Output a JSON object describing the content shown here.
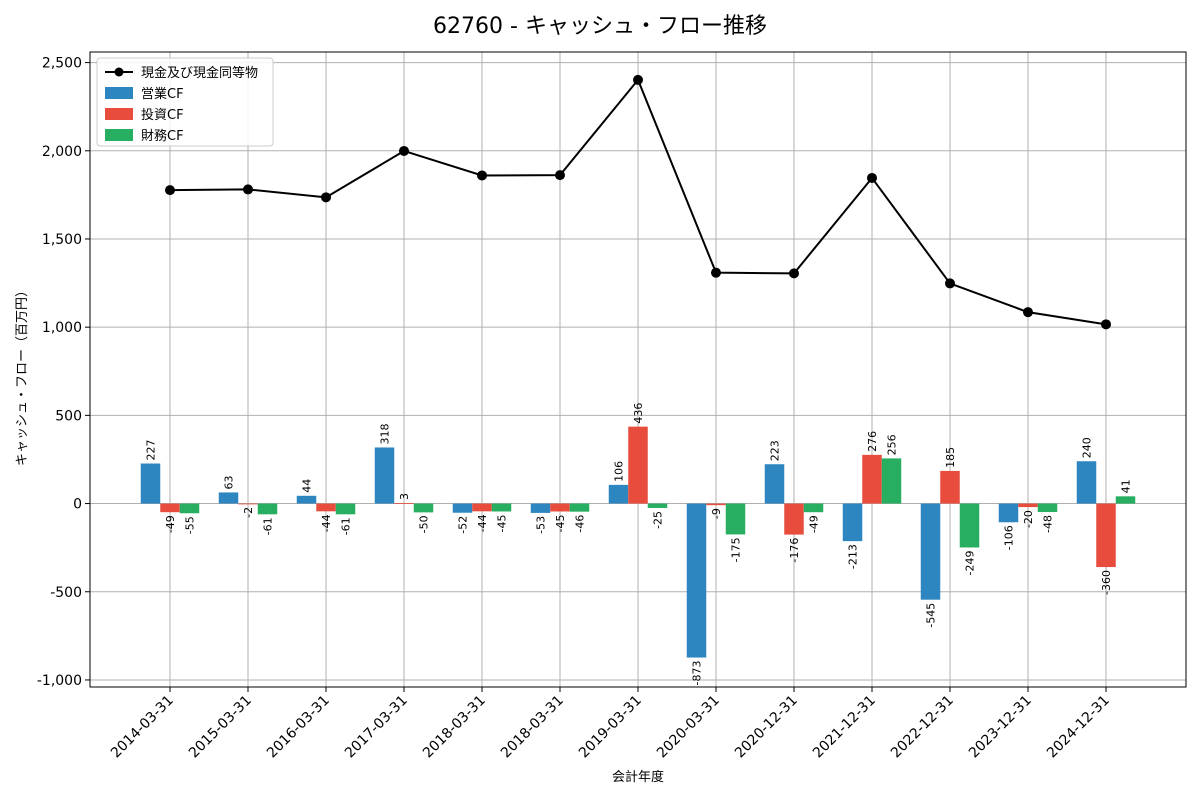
{
  "chart_data": {
    "type": "bar",
    "title": "62760 - キャッシュ・フロー推移",
    "xlabel": "会計年度",
    "ylabel": "キャッシュ・フロー（百万円）",
    "categories": [
      "2014-03-31",
      "2015-03-31",
      "2016-03-31",
      "2017-03-31",
      "2018-03-31",
      "2018-03-31",
      "2019-03-31",
      "2020-03-31",
      "2020-12-31",
      "2021-12-31",
      "2022-12-31",
      "2023-12-31",
      "2024-12-31"
    ],
    "yticks": [
      -1000,
      -500,
      0,
      500,
      1000,
      1500,
      2000,
      2500
    ],
    "ytick_labels": [
      "-1,000",
      "-500",
      "0",
      "500",
      "1,000",
      "1,500",
      "2,000",
      "2,500"
    ],
    "ylim": [
      -1040,
      2560
    ],
    "grid": true,
    "legend_position": "top-left",
    "series": [
      {
        "name": "現金及び現金同等物",
        "kind": "line",
        "color": "#000000",
        "values": [
          1777,
          1781,
          1736,
          1999,
          1860,
          1862,
          2402,
          1309,
          1305,
          1846,
          1248,
          1085,
          1016
        ]
      },
      {
        "name": "営業CF",
        "kind": "bar",
        "color": "#2E86C1",
        "values": [
          227,
          63,
          44,
          318,
          -52,
          -53,
          106,
          -873,
          223,
          -213,
          -545,
          -106,
          240
        ]
      },
      {
        "name": "投資CF",
        "kind": "bar",
        "color": "#E74C3C",
        "values": [
          -49,
          -2,
          -44,
          3,
          -44,
          -45,
          436,
          -9,
          -176,
          276,
          185,
          -20,
          -360
        ]
      },
      {
        "name": "財務CF",
        "kind": "bar",
        "color": "#27AE60",
        "values": [
          -55,
          -61,
          -61,
          -50,
          -45,
          -46,
          -25,
          -175,
          -49,
          256,
          -249,
          -48,
          41
        ]
      }
    ]
  }
}
